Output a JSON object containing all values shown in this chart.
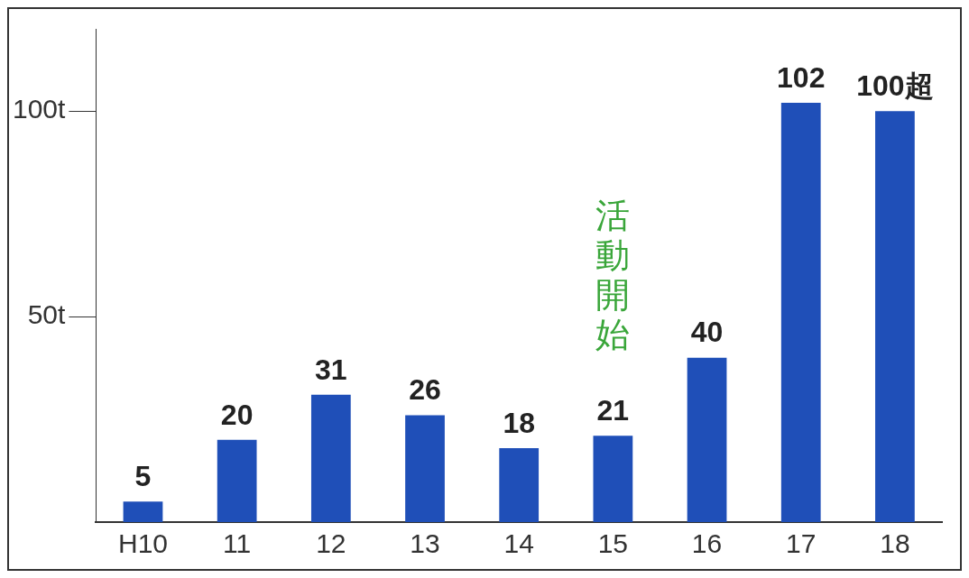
{
  "chart_data": {
    "type": "bar",
    "categories": [
      "H10",
      "11",
      "12",
      "13",
      "14",
      "15",
      "16",
      "17",
      "18"
    ],
    "values": [
      5,
      20,
      31,
      26,
      18,
      21,
      40,
      102,
      100
    ],
    "value_labels": [
      "5",
      "20",
      "31",
      "26",
      "18",
      "21",
      "40",
      "102",
      "100超"
    ],
    "color": "#1f4fb8",
    "ylim": [
      0,
      120
    ],
    "yticks": [
      {
        "value": 50,
        "label": "50t"
      },
      {
        "value": 100,
        "label": "100t"
      }
    ],
    "grid": false,
    "legend": false,
    "annotations": [
      "活動開始"
    ]
  }
}
